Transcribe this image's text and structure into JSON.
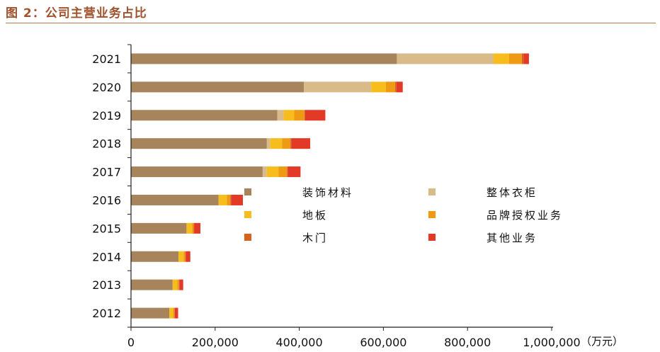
{
  "header": {
    "title": "图 2：公司主营业务占比"
  },
  "chart_data": {
    "type": "bar",
    "orientation": "horizontal",
    "stacked": true,
    "title": "",
    "xlabel": "",
    "ylabel": "",
    "unit": "（万元）",
    "xlim": [
      0,
      1000000
    ],
    "xticks": [
      0,
      200000,
      400000,
      600000,
      800000,
      1000000
    ],
    "xtick_labels": [
      "0",
      "200,000",
      "400,000",
      "600,000",
      "800,000",
      "1,000,000"
    ],
    "grid": false,
    "legend_position": "center-right inside plot",
    "categories": [
      "2021",
      "2020",
      "2019",
      "2018",
      "2017",
      "2016",
      "2015",
      "2014",
      "2013",
      "2012"
    ],
    "series": [
      {
        "name": "装饰材料",
        "color": "#a8845c",
        "values": [
          632000,
          411000,
          348000,
          323000,
          313000,
          208000,
          132000,
          113000,
          99000,
          91000
        ]
      },
      {
        "name": "整体衣柜",
        "color": "#d9bb8a",
        "values": [
          230000,
          160000,
          15000,
          8000,
          10000,
          0,
          0,
          0,
          0,
          0
        ]
      },
      {
        "name": "地板",
        "color": "#f7bd1d",
        "values": [
          37000,
          35000,
          25000,
          28000,
          28000,
          20000,
          13000,
          12000,
          11000,
          9000
        ]
      },
      {
        "name": "品牌授权业务",
        "color": "#ee9a12",
        "values": [
          30000,
          22000,
          24000,
          20000,
          20000,
          8000,
          4000,
          4000,
          4000,
          3000
        ]
      },
      {
        "name": "木门",
        "color": "#d66320",
        "values": [
          4000,
          3000,
          2000,
          2000,
          2000,
          2000,
          1000,
          1000,
          1000,
          1000
        ]
      },
      {
        "name": "其他业务",
        "color": "#e23a26",
        "values": [
          13000,
          15000,
          48000,
          45000,
          30000,
          28000,
          15000,
          11000,
          9000,
          8000
        ]
      }
    ]
  }
}
